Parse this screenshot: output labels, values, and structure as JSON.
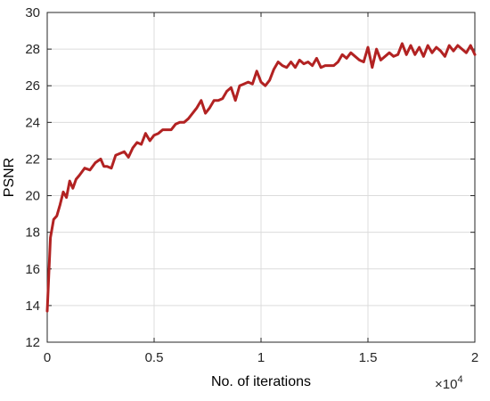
{
  "chart_data": {
    "type": "line",
    "title": "",
    "xlabel": "No. of iterations",
    "ylabel": "PSNR",
    "x_exponent_label": "×10",
    "x_exponent_power": "4",
    "xlim": [
      0,
      2
    ],
    "ylim": [
      12,
      30
    ],
    "xticks": [
      0,
      0.5,
      1,
      1.5,
      2
    ],
    "xtick_labels": [
      "0",
      "0.5",
      "1",
      "1.5",
      "2"
    ],
    "yticks": [
      12,
      14,
      16,
      18,
      20,
      22,
      24,
      26,
      28,
      30
    ],
    "ytick_labels": [
      "12",
      "14",
      "16",
      "18",
      "20",
      "22",
      "24",
      "26",
      "28",
      "30"
    ],
    "grid": true,
    "line_color": "#b22222",
    "grid_color": "#dcdcdc",
    "series": [
      {
        "x": [
          0,
          0.015,
          0.03,
          0.045,
          0.06,
          0.075,
          0.09,
          0.105,
          0.12,
          0.135,
          0.15,
          0.175,
          0.2,
          0.225,
          0.25,
          0.265,
          0.28,
          0.3,
          0.32,
          0.34,
          0.36,
          0.38,
          0.4,
          0.42,
          0.44,
          0.46,
          0.48,
          0.5,
          0.52,
          0.54,
          0.56,
          0.58,
          0.6,
          0.62,
          0.64,
          0.66,
          0.68,
          0.7,
          0.72,
          0.74,
          0.76,
          0.78,
          0.8,
          0.82,
          0.84,
          0.86,
          0.88,
          0.9,
          0.92,
          0.94,
          0.96,
          0.98,
          1.0,
          1.02,
          1.04,
          1.06,
          1.08,
          1.1,
          1.12,
          1.14,
          1.16,
          1.18,
          1.2,
          1.22,
          1.24,
          1.26,
          1.28,
          1.3,
          1.32,
          1.34,
          1.36,
          1.38,
          1.4,
          1.42,
          1.44,
          1.46,
          1.48,
          1.5,
          1.52,
          1.54,
          1.56,
          1.58,
          1.6,
          1.62,
          1.64,
          1.66,
          1.68,
          1.7,
          1.72,
          1.74,
          1.76,
          1.78,
          1.8,
          1.82,
          1.84,
          1.86,
          1.88,
          1.9,
          1.92,
          1.94,
          1.96,
          1.98,
          2.0
        ],
        "y": [
          13.7,
          17.7,
          18.7,
          18.9,
          19.5,
          20.2,
          19.9,
          20.8,
          20.4,
          20.9,
          21.1,
          21.5,
          21.4,
          21.8,
          22.0,
          21.6,
          21.6,
          21.5,
          22.2,
          22.3,
          22.4,
          22.1,
          22.6,
          22.9,
          22.8,
          23.4,
          23.0,
          23.3,
          23.4,
          23.6,
          23.6,
          23.6,
          23.9,
          24.0,
          24.0,
          24.2,
          24.5,
          24.8,
          25.2,
          24.5,
          24.8,
          25.2,
          25.2,
          25.3,
          25.7,
          25.9,
          25.2,
          26.0,
          26.1,
          26.2,
          26.1,
          26.8,
          26.2,
          26.0,
          26.3,
          26.9,
          27.3,
          27.1,
          27.0,
          27.3,
          27.0,
          27.4,
          27.2,
          27.3,
          27.1,
          27.5,
          27.0,
          27.1,
          27.1,
          27.1,
          27.3,
          27.7,
          27.5,
          27.8,
          27.6,
          27.4,
          27.3,
          28.1,
          27.0,
          28.0,
          27.4,
          27.6,
          27.8,
          27.6,
          27.7,
          28.3,
          27.7,
          28.2,
          27.7,
          28.1,
          27.6,
          28.2,
          27.8,
          28.1,
          27.9,
          27.6,
          28.2,
          27.9,
          28.2,
          28.0,
          27.8,
          28.2,
          27.7
        ]
      }
    ]
  }
}
